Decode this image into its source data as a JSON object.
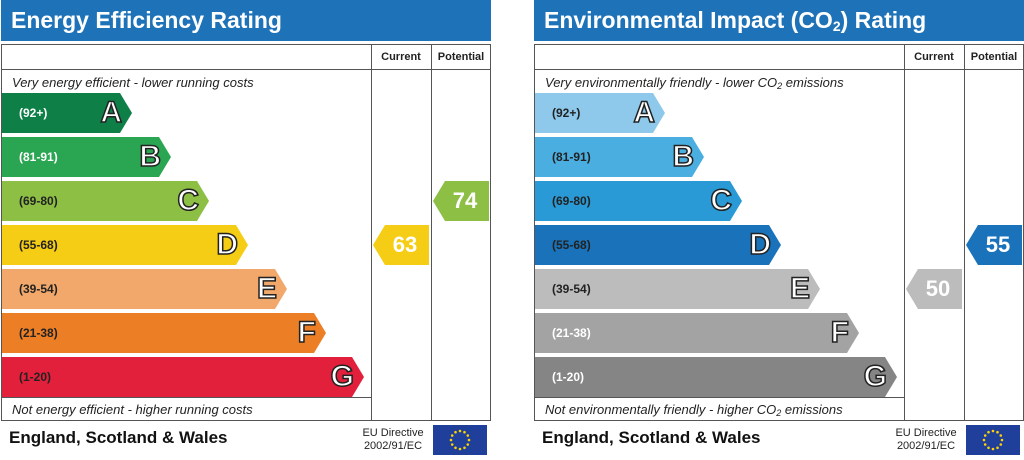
{
  "chart_data": [
    {
      "type": "bar",
      "title": "Energy Efficiency Rating",
      "top_note": "Very energy efficient - lower running costs",
      "bottom_note": "Not energy efficient - higher running costs",
      "columns": [
        "Current",
        "Potential"
      ],
      "bands": [
        {
          "letter": "A",
          "range": "(92+)",
          "color": "#0e7f46",
          "text_color": "#ffffff"
        },
        {
          "letter": "B",
          "range": "(81-91)",
          "color": "#2aa551",
          "text_color": "#ffffff"
        },
        {
          "letter": "C",
          "range": "(69-80)",
          "color": "#8dbf45",
          "text_color": "#222222"
        },
        {
          "letter": "D",
          "range": "(55-68)",
          "color": "#f5cd14",
          "text_color": "#222222"
        },
        {
          "letter": "E",
          "range": "(39-54)",
          "color": "#f2a86a",
          "text_color": "#222222"
        },
        {
          "letter": "F",
          "range": "(21-38)",
          "color": "#ec7f26",
          "text_color": "#222222"
        },
        {
          "letter": "G",
          "range": "(1-20)",
          "color": "#e3203b",
          "text_color": "#222222"
        }
      ],
      "current": {
        "value": "63",
        "band": "D",
        "color": "#f5cd14"
      },
      "potential": {
        "value": "74",
        "band": "C",
        "color": "#8dbf45"
      },
      "footer": {
        "region": "England, Scotland & Wales",
        "directive_line1": "EU Directive",
        "directive_line2": "2002/91/EC"
      }
    },
    {
      "type": "bar",
      "title_main": "Environmental Impact (CO",
      "title_sub": "2",
      "title_end": ") Rating",
      "top_note_main": "Very environmentally friendly - lower CO",
      "top_note_sub": "2",
      "top_note_end": " emissions",
      "bottom_note_main": "Not environmentally friendly - higher CO",
      "bottom_note_sub": "2",
      "bottom_note_end": " emissions",
      "columns": [
        "Current",
        "Potential"
      ],
      "bands": [
        {
          "letter": "A",
          "range": "(92+)",
          "color": "#8ec9ec",
          "text_color": "#222222"
        },
        {
          "letter": "B",
          "range": "(81-91)",
          "color": "#4aaee0",
          "text_color": "#222222"
        },
        {
          "letter": "C",
          "range": "(69-80)",
          "color": "#2a9ad6",
          "text_color": "#222222"
        },
        {
          "letter": "D",
          "range": "(55-68)",
          "color": "#1a73ba",
          "text_color": "#222222"
        },
        {
          "letter": "E",
          "range": "(39-54)",
          "color": "#bcbcbc",
          "text_color": "#222222"
        },
        {
          "letter": "F",
          "range": "(21-38)",
          "color": "#a3a3a3",
          "text_color": "#ffffff"
        },
        {
          "letter": "G",
          "range": "(1-20)",
          "color": "#858585",
          "text_color": "#ffffff"
        }
      ],
      "current": {
        "value": "50",
        "band": "E",
        "color": "#bcbcbc"
      },
      "potential": {
        "value": "55",
        "band": "D",
        "color": "#1a73ba"
      },
      "footer": {
        "region": "England, Scotland & Wales",
        "directive_line1": "EU Directive",
        "directive_line2": "2002/91/EC"
      }
    }
  ]
}
